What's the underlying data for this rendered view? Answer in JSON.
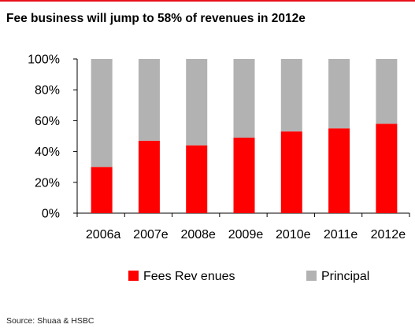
{
  "header": {
    "title": "Fee business will jump to 58% of revenues in 2012e"
  },
  "footer": {
    "source": "Source: Shuaa & HSBC"
  },
  "colors": {
    "accent_rule": "#e8101a",
    "fees": "#ff0000",
    "principal": "#b2b2b2"
  },
  "chart_data": {
    "type": "bar",
    "stacked": true,
    "categories": [
      "2006a",
      "2007e",
      "2008e",
      "2009e",
      "2010e",
      "2011e",
      "2012e"
    ],
    "series": [
      {
        "name": "Fees Rev enues",
        "values": [
          30,
          47,
          44,
          49,
          53,
          55,
          58
        ],
        "color": "#ff0000"
      },
      {
        "name": "Principal",
        "values": [
          70,
          53,
          56,
          51,
          47,
          45,
          42
        ],
        "color": "#b2b2b2"
      }
    ],
    "ylim": [
      0,
      100
    ],
    "yticks": [
      {
        "value": 0,
        "label": "0%"
      },
      {
        "value": 20,
        "label": "20%"
      },
      {
        "value": 40,
        "label": "40%"
      },
      {
        "value": 60,
        "label": "60%"
      },
      {
        "value": 80,
        "label": "80%"
      },
      {
        "value": 100,
        "label": "100%"
      }
    ],
    "grid": false,
    "legend_position": "bottom"
  }
}
